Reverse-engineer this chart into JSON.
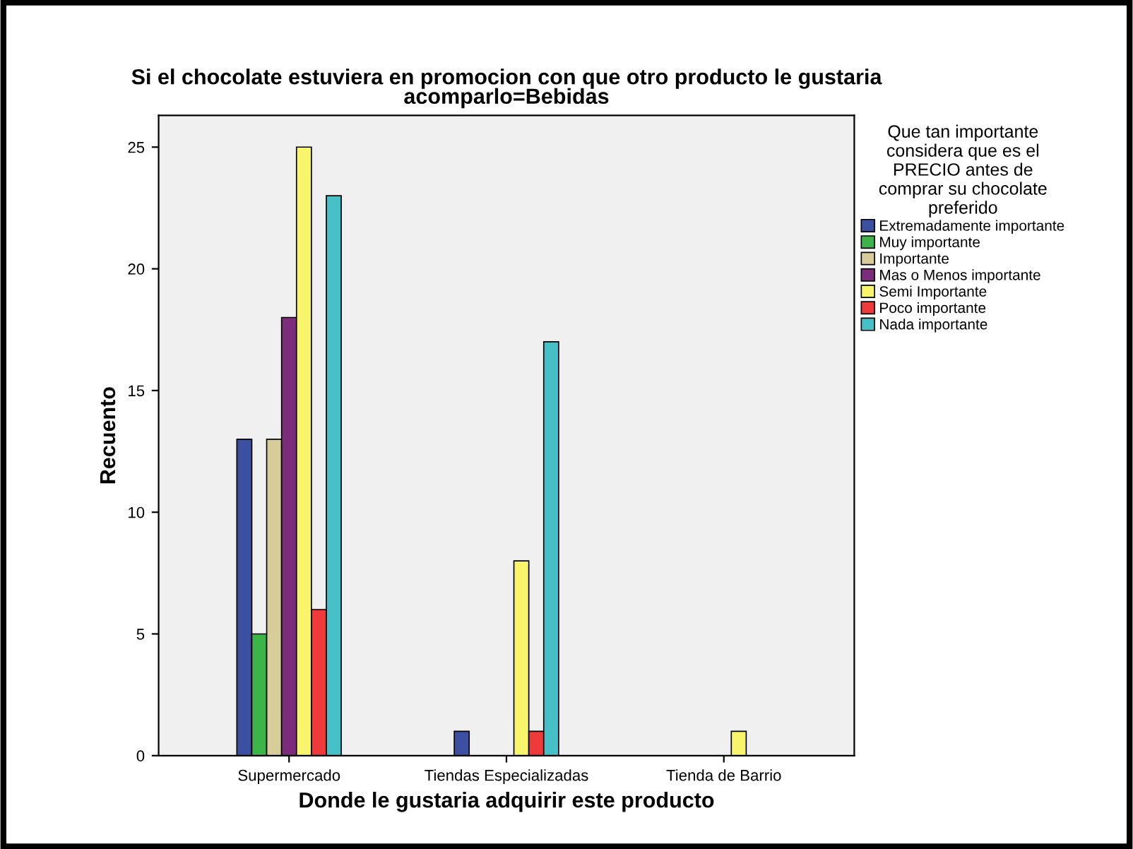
{
  "chart_data": {
    "type": "bar",
    "title": "Si el chocolate estuviera en promocion con que otro producto le gustaria\nacomparlo=Bebidas",
    "xlabel": "Donde le gustaria adquirir este producto",
    "ylabel": "Recuento",
    "legend_title": "Que tan importante\nconsidera que es el\nPRECIO antes de\ncomprar su chocolate\npreferido",
    "categories": [
      "Supermercado",
      "Tiendas Especializadas",
      "Tienda de Barrio"
    ],
    "series": [
      {
        "name": "Extremadamente importante",
        "color": "#3d4fa0",
        "values": [
          13,
          1,
          null
        ]
      },
      {
        "name": "Muy importante",
        "color": "#3cb44a",
        "values": [
          5,
          null,
          null
        ]
      },
      {
        "name": "Importante",
        "color": "#d8cc9a",
        "values": [
          13,
          null,
          null
        ]
      },
      {
        "name": "Mas o Menos importante",
        "color": "#7b2d7b",
        "values": [
          18,
          null,
          null
        ]
      },
      {
        "name": "Semi Importante",
        "color": "#f8f56c",
        "values": [
          25,
          8,
          1
        ]
      },
      {
        "name": "Poco importante",
        "color": "#ee3a3a",
        "values": [
          6,
          1,
          null
        ]
      },
      {
        "name": "Nada importante",
        "color": "#46bfc6",
        "values": [
          23,
          17,
          null
        ]
      }
    ],
    "ylim": [
      0,
      26.3
    ],
    "yticks": [
      0,
      5,
      10,
      15,
      20,
      25
    ],
    "grid": false,
    "legend": "right"
  }
}
